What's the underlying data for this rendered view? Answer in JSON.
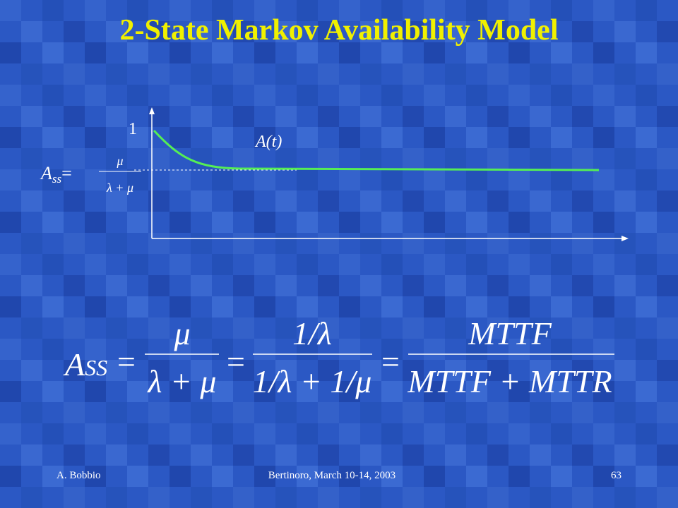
{
  "header": {
    "title": "2-State Markov Availability Model"
  },
  "graph": {
    "y_label": "1",
    "curve_label": "A(t)",
    "ass_symbol": "A",
    "ass_subscript": "ss",
    "ass_equals": "=",
    "numerator": "μ",
    "denominator": "λ + μ"
  },
  "formula": {
    "symbol": "A",
    "subscript": "SS",
    "equals": "=",
    "fraction1": {
      "numerator": "μ",
      "denominator": "λ + μ"
    },
    "fraction2": {
      "numerator": "1/λ",
      "denominator": "1/λ + 1/μ"
    },
    "fraction3": {
      "numerator": "MTTF",
      "denominator": "MTTF + MTTR"
    }
  },
  "footer": {
    "author": "A. Bobbio",
    "event": "Bertinoro, March 10-14, 2003",
    "page": "63"
  }
}
